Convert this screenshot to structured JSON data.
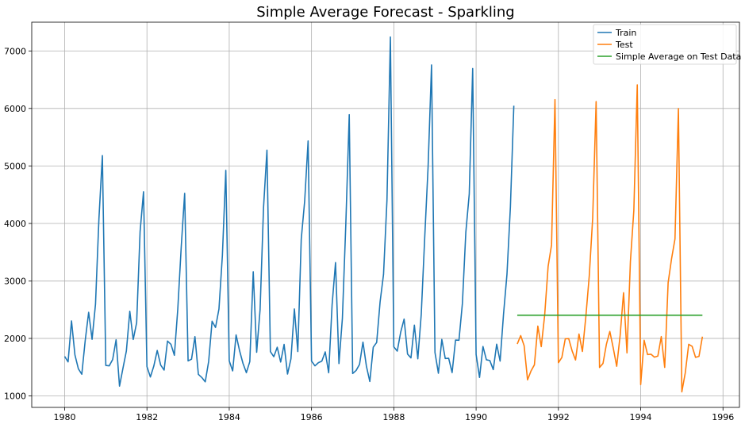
{
  "chart_data": {
    "type": "line",
    "title": "Simple Average Forecast - Sparkling",
    "xlabel": "",
    "ylabel": "",
    "xlim": [
      1979.2,
      1996.4
    ],
    "ylim": [
      800,
      7500
    ],
    "xticks": [
      1980,
      1982,
      1984,
      1986,
      1988,
      1990,
      1992,
      1994,
      1996
    ],
    "yticks": [
      1000,
      2000,
      3000,
      4000,
      5000,
      6000,
      7000
    ],
    "grid": true,
    "legend_position": "top-right",
    "series": [
      {
        "name": "Train",
        "color": "#1f77b4",
        "x_start": 1980.0,
        "x_step": 0.0833333,
        "values": [
          1686,
          1591,
          2304,
          1712,
          1471,
          1377,
          1966,
          2453,
          1984,
          2596,
          4087,
          5179,
          1530,
          1523,
          1633,
          1976,
          1170,
          1480,
          1781,
          2472,
          1981,
          2273,
          3857,
          4551,
          1510,
          1329,
          1518,
          1790,
          1537,
          1449,
          1954,
          1897,
          1706,
          2514,
          3593,
          4524,
          1609,
          1638,
          2030,
          1375,
          1320,
          1245,
          1600,
          2298,
          2191,
          2511,
          3440,
          4923,
          1609,
          1435,
          2061,
          1789,
          1567,
          1404,
          1597,
          3159,
          1759,
          2504,
          4273,
          5274,
          1771,
          1682,
          1846,
          1589,
          1896,
          1379,
          1645,
          2512,
          1771,
          3727,
          4388,
          5434,
          1606,
          1523,
          1577,
          1605,
          1765,
          1403,
          2584,
          3318,
          1562,
          2349,
          3987,
          5891,
          1389,
          1442,
          1548,
          1935,
          1518,
          1250,
          1847,
          1930,
          2638,
          3114,
          4405,
          7242,
          1853,
          1779,
          2108,
          2336,
          1728,
          1661,
          2230,
          1645,
          2421,
          3740,
          4988,
          6757,
          1757,
          1394,
          1982,
          1650,
          1654,
          1406,
          1971,
          1968,
          2608,
          3845,
          4514,
          6694,
          1720,
          1321,
          1859,
          1628,
          1615,
          1457,
          1899,
          1605,
          2424,
          3116,
          4286,
          6047
        ]
      },
      {
        "name": "Test",
        "color": "#ff7f0e",
        "x_start": 1991.0,
        "x_step": 0.0833333,
        "values": [
          1902,
          2049,
          1874,
          1279,
          1432,
          1540,
          2214,
          1857,
          2408,
          3252,
          3627,
          6153,
          1577,
          1667,
          1993,
          1997,
          1783,
          1625,
          2076,
          1773,
          2377,
          3088,
          4096,
          6119,
          1494,
          1564,
          1898,
          2121,
          1831,
          1515,
          2048,
          2795,
          1749,
          3339,
          4227,
          6410,
          1197,
          1968,
          1720,
          1725,
          1674,
          1693,
          2031,
          1495,
          2968,
          3385,
          3729,
          5999,
          1070,
          1402,
          1897,
          1862,
          1670,
          1688,
          2031
        ]
      },
      {
        "name": "Simple Average on Test Data",
        "color": "#2ca02c",
        "x": [
          1991.0,
          1995.5
        ],
        "values": [
          2403.8,
          2403.8
        ]
      }
    ]
  }
}
